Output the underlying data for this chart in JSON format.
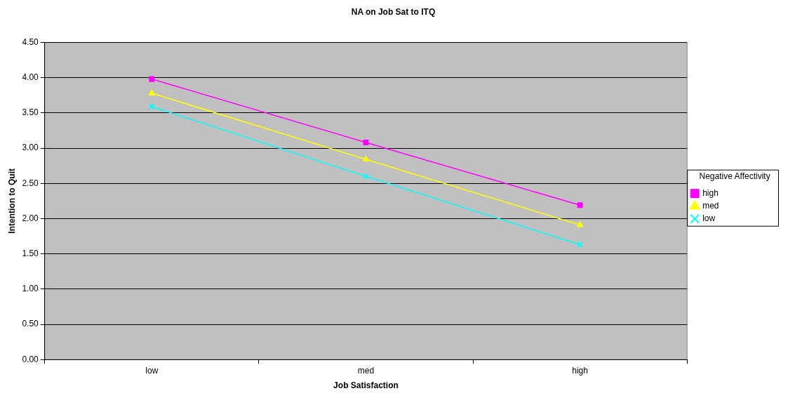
{
  "chart_data": {
    "type": "line",
    "title": "NA on Job Sat to ITQ",
    "xlabel": "Job Satisfaction",
    "ylabel": "Intention to Quit",
    "legend_title": "Negative Affectivity",
    "categories": [
      "low",
      "med",
      "high"
    ],
    "series": [
      {
        "name": "high",
        "color": "#ff00ff",
        "marker": "square",
        "values": [
          3.98,
          3.08,
          2.19
        ]
      },
      {
        "name": "med",
        "color": "#ffff00",
        "marker": "triangle",
        "values": [
          3.78,
          2.84,
          1.91
        ]
      },
      {
        "name": "low",
        "color": "#00ffff",
        "marker": "cross",
        "values": [
          3.59,
          2.6,
          1.63
        ]
      }
    ],
    "ylim": [
      0,
      4.5
    ],
    "yticks": [
      {
        "value": 0,
        "label": "0.00"
      },
      {
        "value": 0.5,
        "label": "0.50"
      },
      {
        "value": 1,
        "label": "1.00"
      },
      {
        "value": 1.5,
        "label": "1.50"
      },
      {
        "value": 2,
        "label": "2.00"
      },
      {
        "value": 2.5,
        "label": "2.50"
      },
      {
        "value": 3,
        "label": "3.00"
      },
      {
        "value": 3.5,
        "label": "3.50"
      },
      {
        "value": 4,
        "label": "4.00"
      },
      {
        "value": 4.5,
        "label": "4.50"
      }
    ],
    "grid": "y",
    "legend": "right"
  }
}
